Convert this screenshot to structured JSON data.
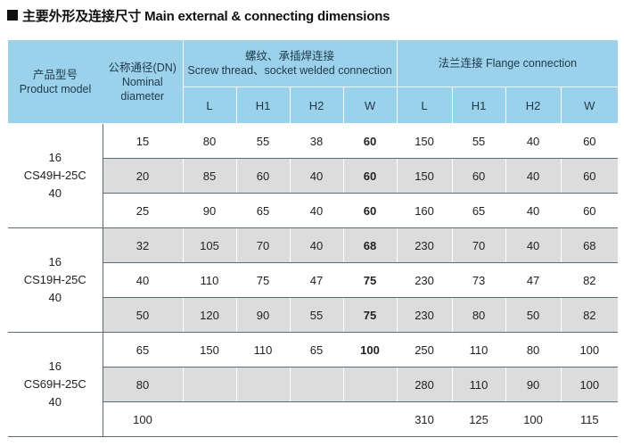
{
  "title": {
    "text": "主要外形及连接尺寸 Main external & connecting dimensions"
  },
  "header": {
    "model_cn": "产品型号",
    "model_en": "Product model",
    "dn_line1": "公称通径(DN)",
    "dn_line2": "Nominal",
    "dn_line3": "diameter",
    "screw_cn": "螺纹、承插焊连接",
    "screw_en": "Screw thread、socket welded connection",
    "flange": "法兰连接 Flange connection",
    "sub": [
      "L",
      "H1",
      "H2",
      "W",
      "L",
      "H1",
      "H2",
      "W"
    ]
  },
  "groups": [
    {
      "model_lines": [
        "16",
        "CS49H-25C",
        "40"
      ]
    },
    {
      "model_lines": [
        "16",
        "CS19H-25C",
        "40"
      ]
    },
    {
      "model_lines": [
        "16",
        "CS69H-25C",
        "40"
      ]
    }
  ],
  "rows": [
    [
      "15",
      "80",
      "55",
      "38",
      "60",
      "150",
      "55",
      "40",
      "60"
    ],
    [
      "20",
      "85",
      "60",
      "40",
      "60",
      "150",
      "60",
      "40",
      "60"
    ],
    [
      "25",
      "90",
      "65",
      "40",
      "60",
      "160",
      "65",
      "40",
      "60"
    ],
    [
      "32",
      "105",
      "70",
      "40",
      "68",
      "230",
      "70",
      "40",
      "68"
    ],
    [
      "40",
      "110",
      "75",
      "47",
      "75",
      "230",
      "73",
      "47",
      "82"
    ],
    [
      "50",
      "120",
      "90",
      "55",
      "75",
      "230",
      "80",
      "50",
      "82"
    ],
    [
      "65",
      "150",
      "110",
      "65",
      "100",
      "250",
      "110",
      "80",
      "100"
    ],
    [
      "80",
      "",
      "",
      "",
      "",
      "280",
      "110",
      "90",
      "100"
    ],
    [
      "100",
      "",
      "",
      "",
      "",
      "310",
      "125",
      "100",
      "115"
    ]
  ],
  "colors": {
    "header_bg": "#9cd1ec",
    "shaded_row": "#dcdcdc",
    "rule": "#5a6c77"
  }
}
